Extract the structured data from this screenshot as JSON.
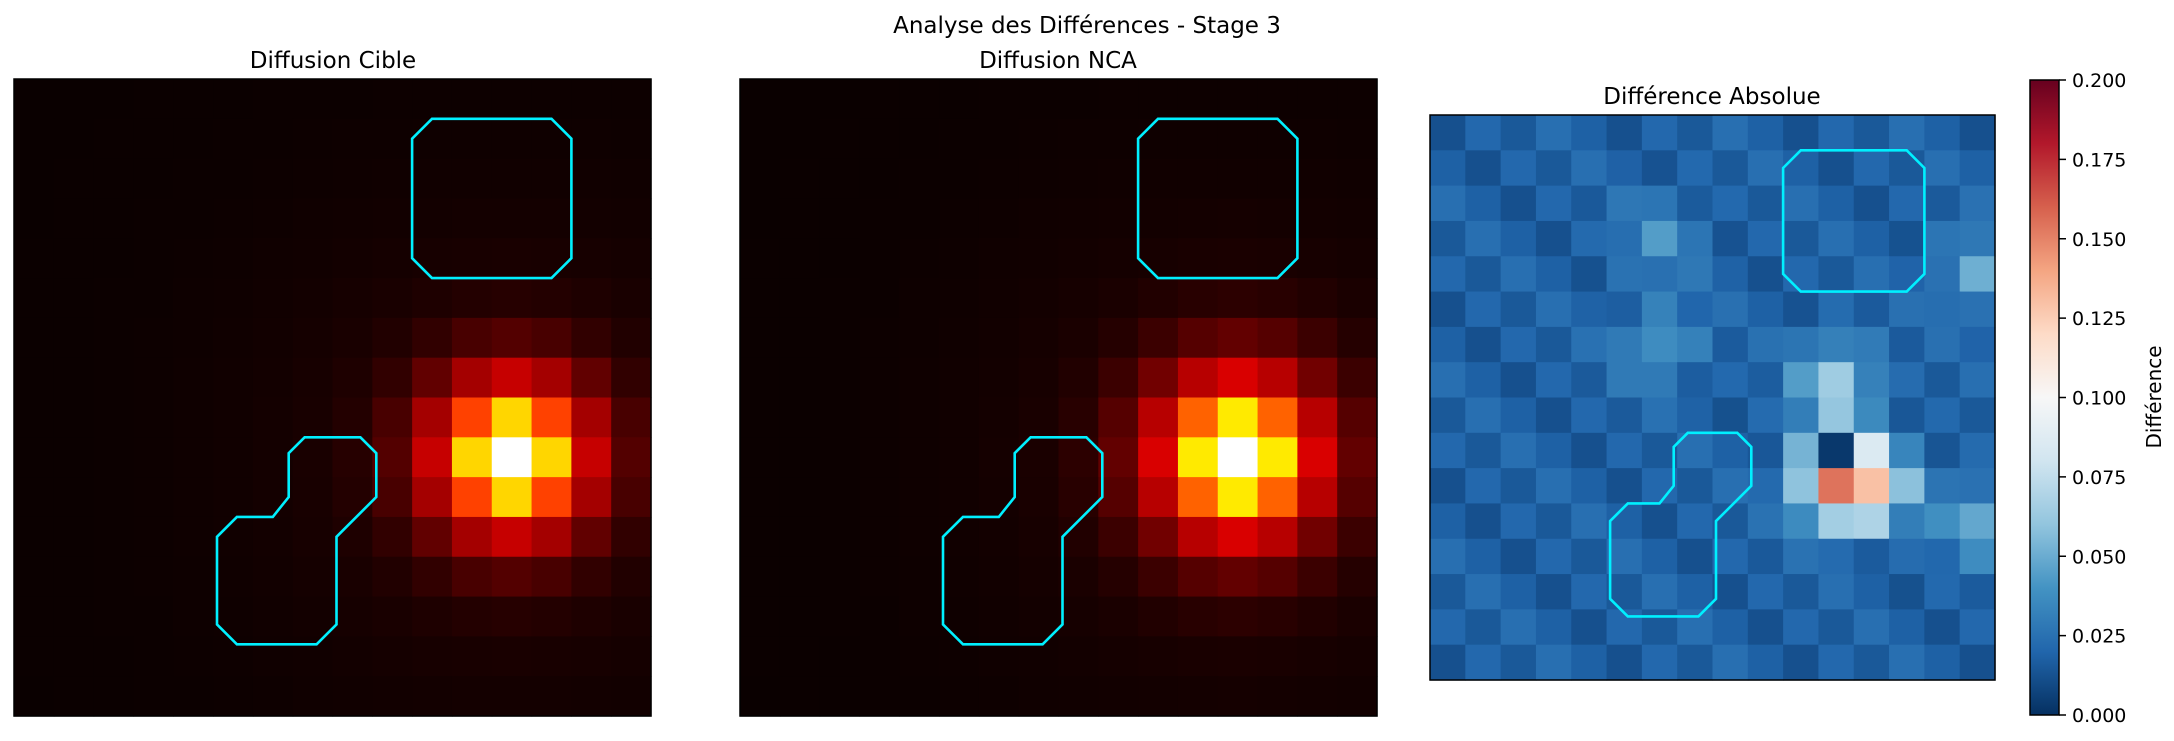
{
  "figure": {
    "suptitle": "Analyse des Différences - Stage 3"
  },
  "chart_data": [
    {
      "type": "heatmap",
      "title": "Diffusion Cible",
      "grid_size": [
        16,
        16
      ],
      "colormap": "hot",
      "peak": {
        "row": 9,
        "col": 12
      },
      "obstacles": "cyan outlines (2)",
      "xlabel": "",
      "ylabel": ""
    },
    {
      "type": "heatmap",
      "title": "Diffusion NCA",
      "grid_size": [
        16,
        16
      ],
      "colormap": "hot",
      "peak": {
        "row": 9,
        "col": 12
      },
      "obstacles": "cyan outlines (2)",
      "xlabel": "",
      "ylabel": ""
    },
    {
      "type": "heatmap",
      "title": "Différence Absolue",
      "grid_size": [
        16,
        16
      ],
      "colormap": "RdBu_r",
      "zlim": [
        0,
        0.2
      ],
      "colorbar_label": "Différence",
      "colorbar_ticks": [
        "0.000",
        "0.025",
        "0.050",
        "0.075",
        "0.100",
        "0.125",
        "0.150",
        "0.175",
        "0.200"
      ],
      "obstacles": "cyan outlines (2)",
      "xlabel": "",
      "ylabel": ""
    }
  ]
}
